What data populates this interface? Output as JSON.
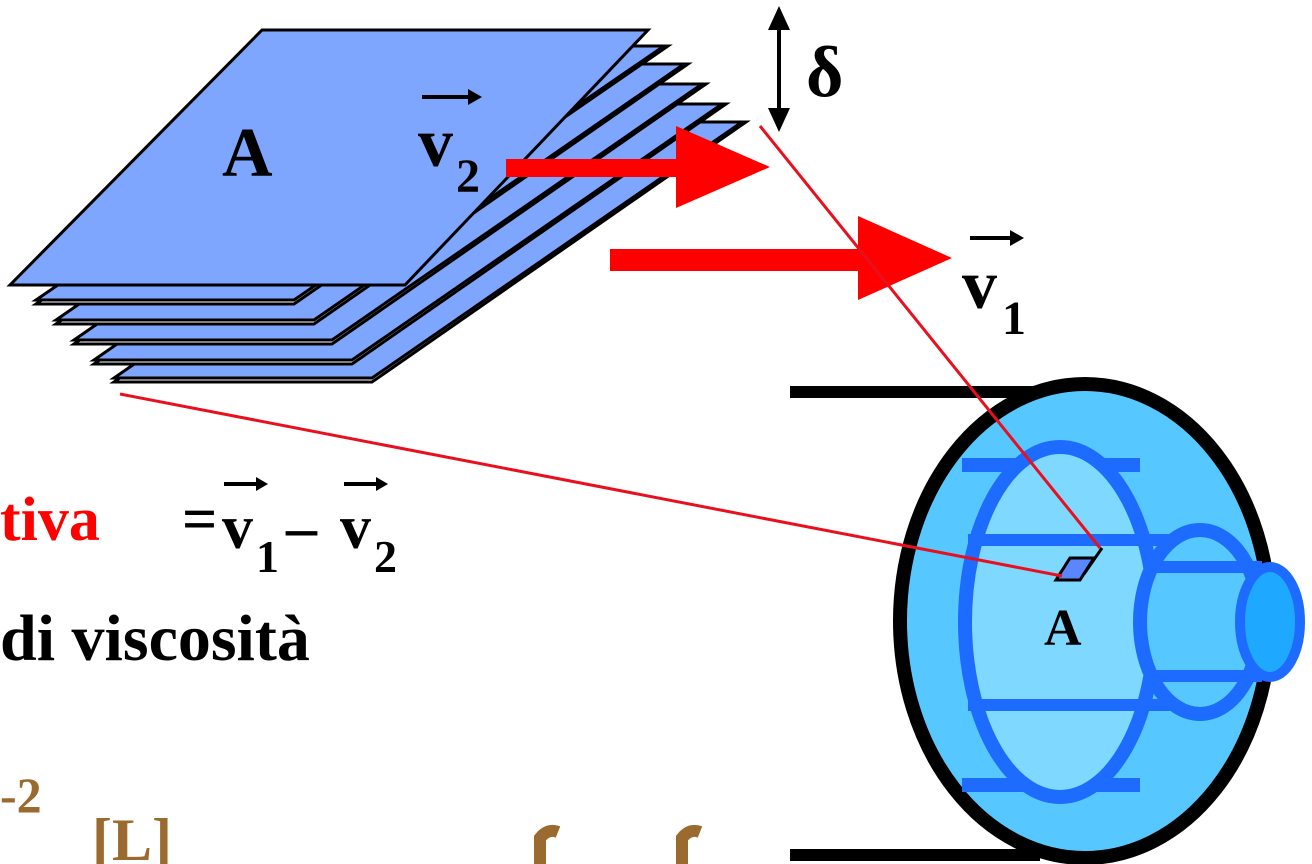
{
  "colors": {
    "plate_fill": "#7fa6ff",
    "plate_back": "#ffffff",
    "arrow": "#ff0000",
    "guide_line": "#e8101e",
    "pipe_outer": "#56c8ff",
    "pipe_inner": "#7fd8ff",
    "pipe_stroke": "#1e6bff",
    "relative_word": "#ff0000",
    "formula_brown": "#9a6a2e"
  },
  "labels": {
    "plate_area": "A",
    "v2_letter": "v",
    "v2_sub": "2",
    "v1_letter": "v",
    "v1_sub": "1",
    "delta": "δ",
    "pipe_area": "A"
  },
  "text": {
    "relative_word": "tiva",
    "equals": "=",
    "eq_v1": "v",
    "eq_sub1": "1",
    "minus": "–",
    "eq_v2": "v",
    "eq_sub2": "2",
    "viscosity": "di viscosità",
    "exponent": "-2",
    "bracket": "[L]"
  }
}
